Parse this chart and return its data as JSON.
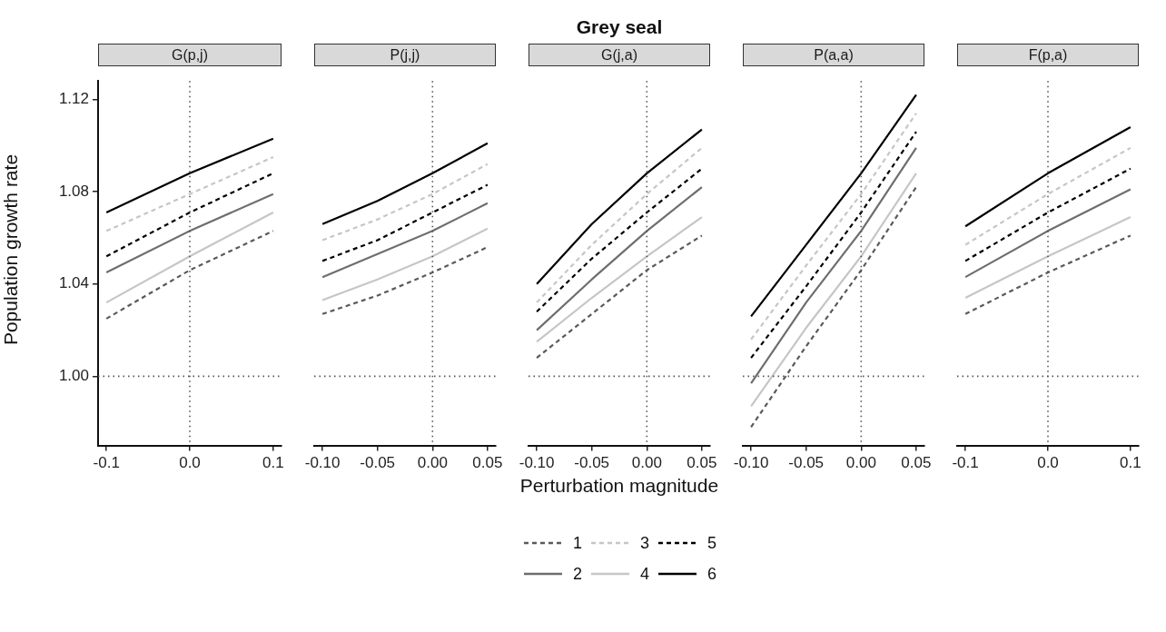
{
  "chart_data": [
    {
      "type": "line",
      "title": "G(p,j)",
      "ylabel": "Population growth rate",
      "x": [
        -0.1,
        0,
        0.1
      ],
      "xlim": [
        -0.11,
        0.11
      ],
      "xticks": [
        {
          "value": -0.1,
          "label": "-0.1"
        },
        {
          "value": 0,
          "label": "0.0"
        },
        {
          "value": 0.1,
          "label": "0.1"
        }
      ],
      "ylim": [
        0.97,
        1.128
      ],
      "yticks": [
        {
          "value": 1.0,
          "label": "1.00"
        },
        {
          "value": 1.04,
          "label": "1.04"
        },
        {
          "value": 1.08,
          "label": "1.08"
        },
        {
          "value": 1.12,
          "label": "1.12"
        }
      ],
      "grid": false,
      "ref_lines": [
        {
          "axis": "y",
          "value": 1.0,
          "color": "#555555",
          "line_style": "dotted"
        },
        {
          "axis": "x",
          "value": 0,
          "color": "#555555",
          "line_style": "dotted"
        }
      ],
      "series": [
        {
          "color": "#5a5a5a",
          "line_style": "dashed",
          "values": [
            1.025,
            1.046,
            1.063
          ]
        },
        {
          "color": "#6e6e6e",
          "line_style": "solid",
          "values": [
            1.045,
            1.063,
            1.079
          ]
        },
        {
          "color": "#c6c6c6",
          "line_style": "dashed",
          "values": [
            1.063,
            1.079,
            1.095
          ]
        },
        {
          "color": "#c6c6c6",
          "line_style": "solid",
          "values": [
            1.032,
            1.052,
            1.071
          ]
        },
        {
          "color": "#000000",
          "line_style": "dashed",
          "values": [
            1.052,
            1.071,
            1.088
          ]
        },
        {
          "color": "#000000",
          "line_style": "solid",
          "values": [
            1.071,
            1.088,
            1.103
          ]
        }
      ]
    },
    {
      "type": "line",
      "title": "P(j,j)",
      "tick_labels": "x",
      "x": [
        -0.1,
        -0.05,
        0,
        0.05
      ],
      "xlim": [
        -0.1075,
        0.0575
      ],
      "xticks": [
        {
          "value": -0.1,
          "label": "-0.10"
        },
        {
          "value": -0.05,
          "label": "-0.05"
        },
        {
          "value": 0,
          "label": "0.00"
        },
        {
          "value": 0.05,
          "label": "0.05"
        }
      ],
      "ylim": [
        0.97,
        1.128
      ],
      "grid": false,
      "ref_lines": [
        {
          "axis": "y",
          "value": 1.0,
          "color": "#555555",
          "line_style": "dotted"
        },
        {
          "axis": "x",
          "value": 0,
          "color": "#555555",
          "line_style": "dotted"
        }
      ],
      "series": [
        {
          "color": "#5a5a5a",
          "line_style": "dashed",
          "values": [
            1.027,
            1.035,
            1.045,
            1.056
          ]
        },
        {
          "color": "#6e6e6e",
          "line_style": "solid",
          "values": [
            1.043,
            1.053,
            1.063,
            1.075
          ]
        },
        {
          "color": "#c6c6c6",
          "line_style": "dashed",
          "values": [
            1.059,
            1.068,
            1.079,
            1.092
          ]
        },
        {
          "color": "#c6c6c6",
          "line_style": "solid",
          "values": [
            1.033,
            1.042,
            1.052,
            1.064
          ]
        },
        {
          "color": "#000000",
          "line_style": "dashed",
          "values": [
            1.05,
            1.059,
            1.071,
            1.083
          ]
        },
        {
          "color": "#000000",
          "line_style": "solid",
          "values": [
            1.066,
            1.076,
            1.088,
            1.101
          ]
        }
      ]
    },
    {
      "type": "line",
      "title": "G(j,a)",
      "xlabel": "Perturbation magnitude",
      "annotations": [
        "Grey seal"
      ],
      "legend": "bottom",
      "tick_labels": "x",
      "x": [
        -0.1,
        -0.05,
        0,
        0.05
      ],
      "xlim": [
        -0.1075,
        0.0575
      ],
      "xticks": [
        {
          "value": -0.1,
          "label": "-0.10"
        },
        {
          "value": -0.05,
          "label": "-0.05"
        },
        {
          "value": 0,
          "label": "0.00"
        },
        {
          "value": 0.05,
          "label": "0.05"
        }
      ],
      "ylim": [
        0.97,
        1.128
      ],
      "grid": false,
      "ref_lines": [
        {
          "axis": "y",
          "value": 1.0,
          "color": "#555555",
          "line_style": "dotted"
        },
        {
          "axis": "x",
          "value": 0,
          "color": "#555555",
          "line_style": "dotted"
        }
      ],
      "series": [
        {
          "name": "1",
          "color": "#5a5a5a",
          "line_style": "dashed",
          "values": [
            1.008,
            1.027,
            1.046,
            1.061
          ]
        },
        {
          "name": "2",
          "color": "#6e6e6e",
          "line_style": "solid",
          "values": [
            1.02,
            1.042,
            1.063,
            1.082
          ]
        },
        {
          "name": "3",
          "color": "#c6c6c6",
          "line_style": "dashed",
          "values": [
            1.032,
            1.057,
            1.079,
            1.099
          ]
        },
        {
          "name": "4",
          "color": "#c6c6c6",
          "line_style": "solid",
          "values": [
            1.015,
            1.034,
            1.052,
            1.069
          ]
        },
        {
          "name": "5",
          "color": "#000000",
          "line_style": "dashed",
          "values": [
            1.028,
            1.051,
            1.071,
            1.09
          ]
        },
        {
          "name": "6",
          "color": "#000000",
          "line_style": "solid",
          "values": [
            1.04,
            1.066,
            1.088,
            1.107
          ]
        }
      ]
    },
    {
      "type": "line",
      "title": "P(a,a)",
      "tick_labels": "x",
      "x": [
        -0.1,
        -0.05,
        0,
        0.05
      ],
      "xlim": [
        -0.1075,
        0.0575
      ],
      "xticks": [
        {
          "value": -0.1,
          "label": "-0.10"
        },
        {
          "value": -0.05,
          "label": "-0.05"
        },
        {
          "value": 0,
          "label": "0.00"
        },
        {
          "value": 0.05,
          "label": "0.05"
        }
      ],
      "ylim": [
        0.97,
        1.128
      ],
      "grid": false,
      "ref_lines": [
        {
          "axis": "y",
          "value": 1.0,
          "color": "#555555",
          "line_style": "dotted"
        },
        {
          "axis": "x",
          "value": 0,
          "color": "#555555",
          "line_style": "dotted"
        }
      ],
      "series": [
        {
          "color": "#5a5a5a",
          "line_style": "dashed",
          "values": [
            0.978,
            1.013,
            1.046,
            1.082
          ]
        },
        {
          "color": "#6e6e6e",
          "line_style": "solid",
          "values": [
            0.997,
            1.032,
            1.063,
            1.099
          ]
        },
        {
          "color": "#c6c6c6",
          "line_style": "dashed",
          "values": [
            1.016,
            1.048,
            1.079,
            1.114
          ]
        },
        {
          "color": "#c6c6c6",
          "line_style": "solid",
          "values": [
            0.987,
            1.021,
            1.052,
            1.088
          ]
        },
        {
          "color": "#000000",
          "line_style": "dashed",
          "values": [
            1.008,
            1.039,
            1.071,
            1.106
          ]
        },
        {
          "color": "#000000",
          "line_style": "solid",
          "values": [
            1.026,
            1.057,
            1.088,
            1.122
          ]
        }
      ]
    },
    {
      "type": "line",
      "title": "F(p,a)",
      "tick_labels": "x",
      "x": [
        -0.1,
        0,
        0.1
      ],
      "xlim": [
        -0.11,
        0.11
      ],
      "xticks": [
        {
          "value": -0.1,
          "label": "-0.1"
        },
        {
          "value": 0,
          "label": "0.0"
        },
        {
          "value": 0.1,
          "label": "0.1"
        }
      ],
      "ylim": [
        0.97,
        1.128
      ],
      "grid": false,
      "ref_lines": [
        {
          "axis": "y",
          "value": 1.0,
          "color": "#555555",
          "line_style": "dotted"
        },
        {
          "axis": "x",
          "value": 0,
          "color": "#555555",
          "line_style": "dotted"
        }
      ],
      "series": [
        {
          "color": "#5a5a5a",
          "line_style": "dashed",
          "values": [
            1.027,
            1.045,
            1.061
          ]
        },
        {
          "color": "#6e6e6e",
          "line_style": "solid",
          "values": [
            1.043,
            1.063,
            1.081
          ]
        },
        {
          "color": "#c6c6c6",
          "line_style": "dashed",
          "values": [
            1.057,
            1.079,
            1.099
          ]
        },
        {
          "color": "#c6c6c6",
          "line_style": "solid",
          "values": [
            1.034,
            1.052,
            1.069
          ]
        },
        {
          "color": "#000000",
          "line_style": "dashed",
          "values": [
            1.05,
            1.071,
            1.09
          ]
        },
        {
          "color": "#000000",
          "line_style": "solid",
          "values": [
            1.065,
            1.088,
            1.108
          ]
        }
      ]
    }
  ]
}
